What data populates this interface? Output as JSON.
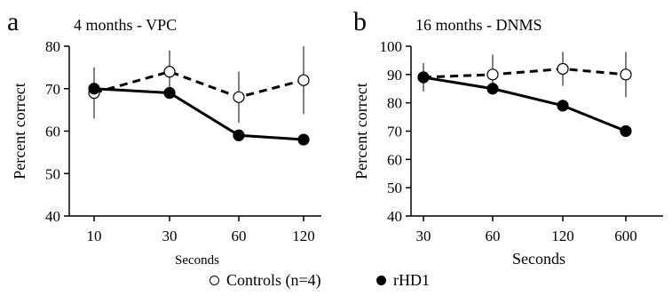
{
  "chart_data": [
    {
      "type": "line",
      "panel_label": "a",
      "title": "4 months - VPC",
      "xlabel": "Seconds",
      "ylabel": "Percent correct",
      "categories": [
        "10",
        "30",
        "60",
        "120"
      ],
      "ylim": [
        40,
        80
      ],
      "yticks": [
        40,
        50,
        60,
        70,
        80
      ],
      "series": [
        {
          "name": "Controls (n=4)",
          "style": "dashed",
          "marker": "open-circle",
          "values": [
            69,
            74,
            68,
            72
          ],
          "errors": [
            6,
            5,
            6,
            8
          ]
        },
        {
          "name": "rHD1",
          "style": "solid",
          "marker": "filled-circle",
          "values": [
            70,
            69,
            59,
            58
          ],
          "errors": [
            5,
            0,
            0,
            0
          ]
        }
      ]
    },
    {
      "type": "line",
      "panel_label": "b",
      "title": "16 months - DNMS",
      "xlabel": "Seconds",
      "ylabel": "Percent correct",
      "categories": [
        "30",
        "60",
        "120",
        "600"
      ],
      "ylim": [
        40,
        100
      ],
      "yticks": [
        40,
        50,
        60,
        70,
        80,
        90,
        100
      ],
      "series": [
        {
          "name": "Controls (n=4)",
          "style": "dashed",
          "marker": "open-circle",
          "values": [
            89,
            90,
            92,
            90
          ],
          "errors": [
            5,
            7,
            6,
            8
          ]
        },
        {
          "name": "rHD1",
          "style": "solid",
          "marker": "filled-circle",
          "values": [
            89,
            85,
            79,
            70
          ],
          "errors": [
            0,
            0,
            0,
            0
          ]
        }
      ]
    }
  ],
  "legend": {
    "controls_label": "Controls (n=4)",
    "rhd1_label": "rHD1"
  },
  "colors": {
    "ink": "#000000",
    "background": "#ffffff"
  }
}
